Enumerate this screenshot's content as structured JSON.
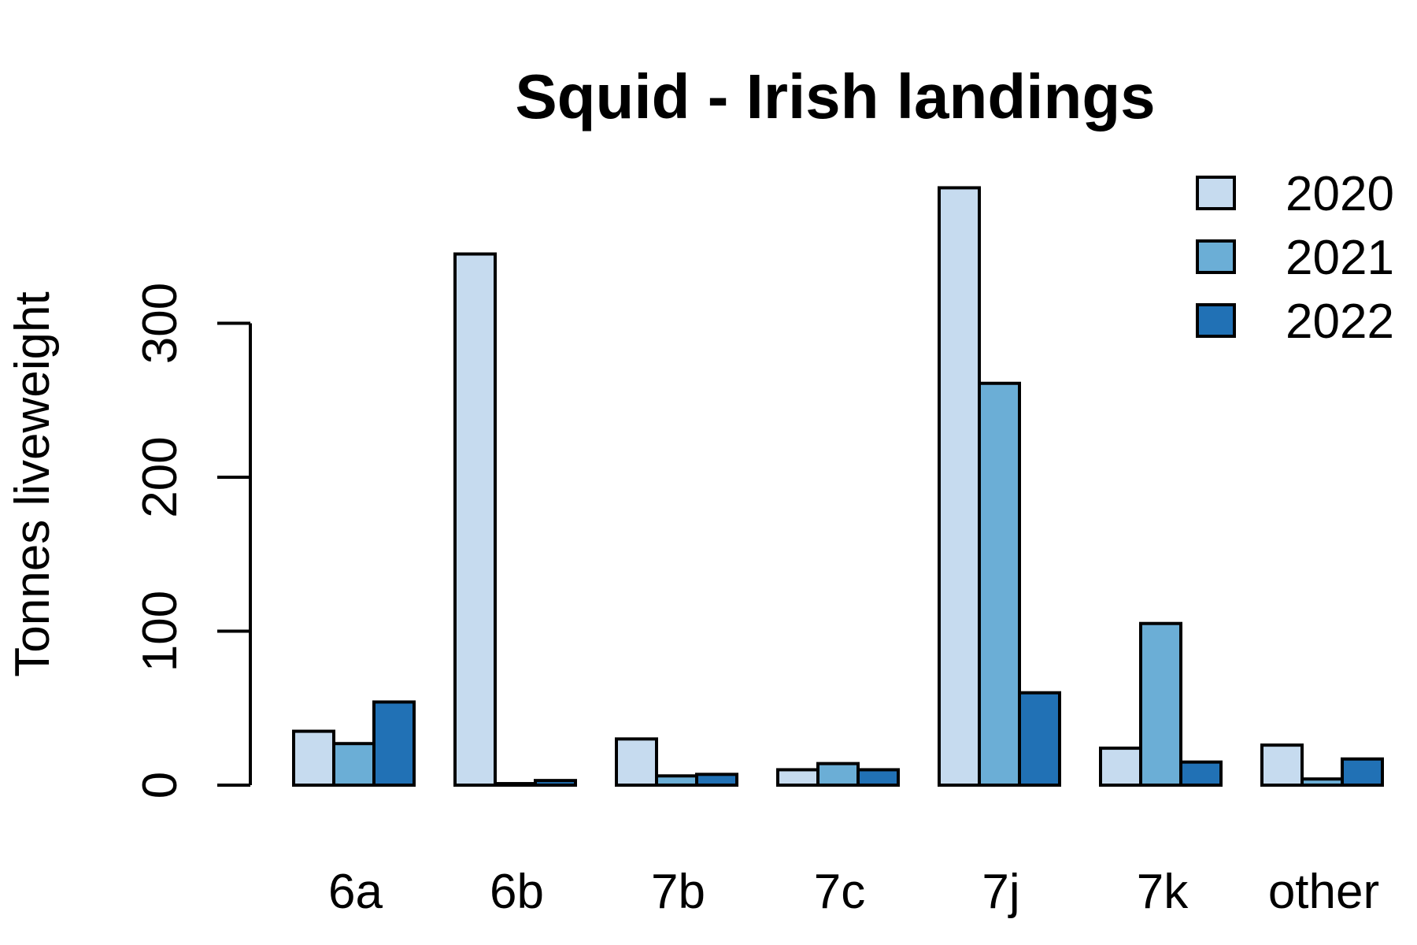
{
  "chart_data": {
    "type": "bar",
    "title": "Squid - Irish landings",
    "xlabel": "",
    "ylabel": "Tonnes liveweight",
    "categories": [
      "6a",
      "6b",
      "7b",
      "7c",
      "7j",
      "7k",
      "other"
    ],
    "series": [
      {
        "name": "2020",
        "color": "#c6dbef",
        "values": [
          35,
          345,
          30,
          10,
          388,
          24,
          26
        ]
      },
      {
        "name": "2021",
        "color": "#6baed6",
        "values": [
          27,
          1,
          6,
          14,
          261,
          105,
          4
        ]
      },
      {
        "name": "2022",
        "color": "#2171b5",
        "values": [
          54,
          3,
          7,
          10,
          60,
          15,
          17
        ]
      }
    ],
    "yticks": [
      0,
      100,
      200,
      300
    ],
    "ylim": [
      0,
      400
    ],
    "grid": false,
    "legend_position": "top-right"
  }
}
